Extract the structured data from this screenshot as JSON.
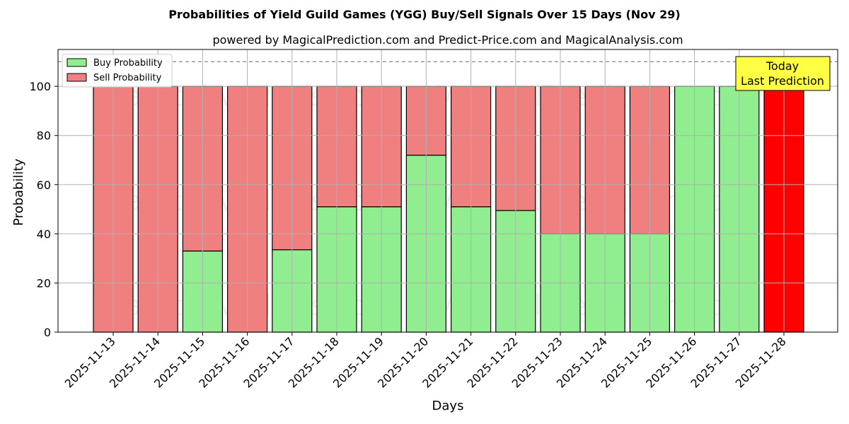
{
  "chart_data": {
    "type": "bar",
    "stacked": true,
    "title": "Probabilities of Yield Guild Games (YGG) Buy/Sell Signals Over 15 Days (Nov 29)",
    "subtitle": "powered by MagicalPrediction.com and Predict-Price.com and MagicalAnalysis.com",
    "xlabel": "Days",
    "ylabel": "Probability",
    "ylim": [
      0,
      115
    ],
    "yticks": [
      0,
      20,
      40,
      60,
      80,
      100
    ],
    "grid": true,
    "legend_position": "top-left",
    "reference_line": 110,
    "categories": [
      "2025-11-13",
      "2025-11-14",
      "2025-11-15",
      "2025-11-16",
      "2025-11-17",
      "2025-11-18",
      "2025-11-19",
      "2025-11-20",
      "2025-11-21",
      "2025-11-22",
      "2025-11-23",
      "2025-11-24",
      "2025-11-25",
      "2025-11-26",
      "2025-11-27",
      "2025-11-28"
    ],
    "series": [
      {
        "name": "Buy Probability",
        "color": "#90ee90",
        "values": [
          0,
          0,
          33,
          0,
          33.5,
          51,
          51,
          72,
          51,
          49.5,
          40,
          40,
          40,
          100,
          100,
          0
        ]
      },
      {
        "name": "Sell Probability",
        "color": "#f08080",
        "values": [
          100,
          100,
          67,
          100,
          66.5,
          49,
          49,
          28,
          49,
          50.5,
          60,
          60,
          60,
          0,
          0,
          100
        ]
      }
    ],
    "highlight": {
      "index": 15,
      "color": "#ff0000"
    },
    "annotation": {
      "line1": "Today",
      "line2": "Last Prediction",
      "color": "#ffff44"
    },
    "watermarks": [
      "MagicalAnalysis.com",
      "MagicalPrediction.com"
    ]
  }
}
